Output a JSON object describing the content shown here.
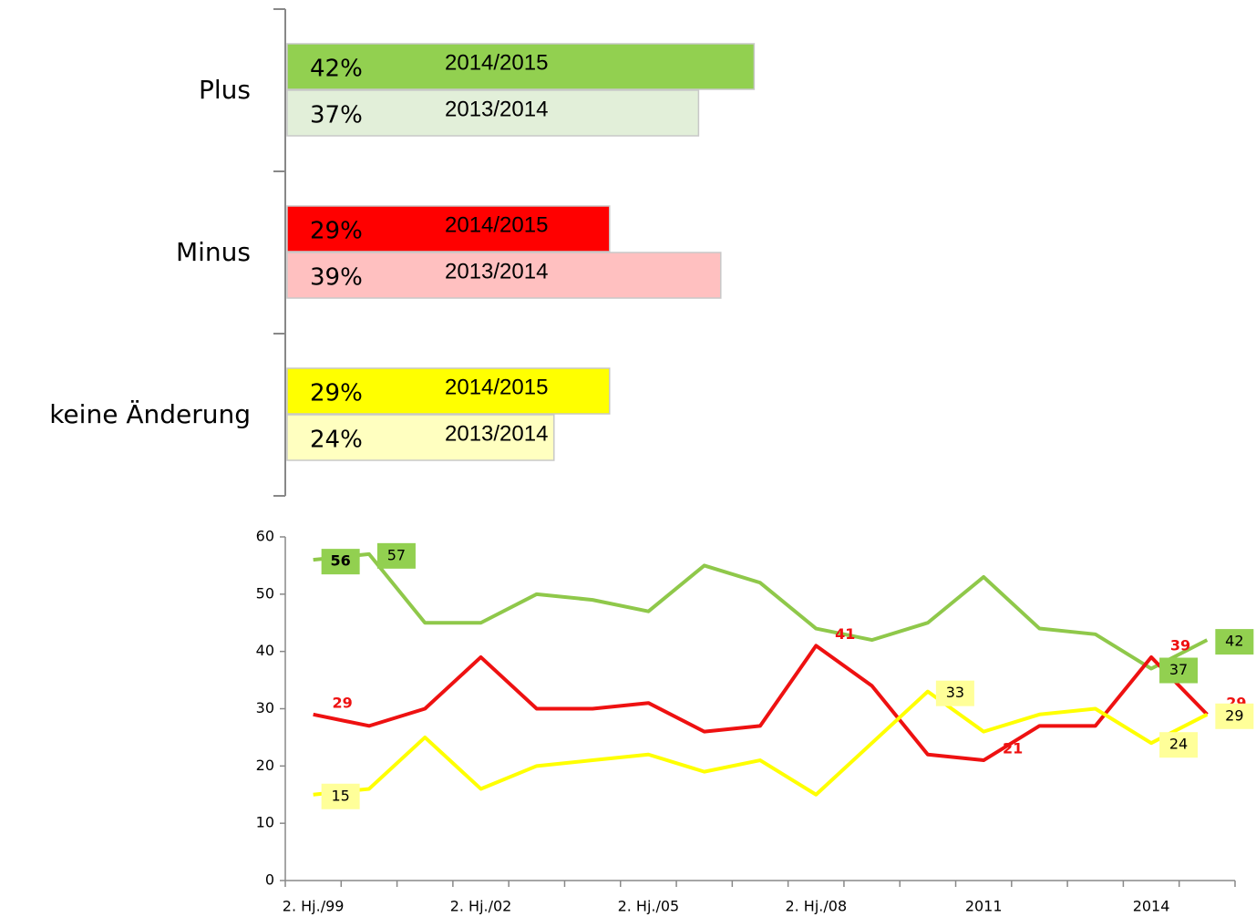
{
  "chart_data": [
    {
      "type": "hbar",
      "categories": [
        "Plus",
        "Minus",
        "keine Änderung"
      ],
      "xlim": [
        0,
        50
      ],
      "series": [
        {
          "name": "2014/2015",
          "colors": [
            "#92d050",
            "#ff0000",
            "#ffff00"
          ],
          "values": [
            42,
            29,
            29
          ],
          "value_labels": [
            "42%",
            "29%",
            "29%"
          ]
        },
        {
          "name": "2013/2014",
          "colors": [
            "#e2efd9",
            "#ffc0c0",
            "#ffffc0"
          ],
          "values": [
            37,
            39,
            24
          ],
          "value_labels": [
            "37%",
            "39%",
            "24%"
          ]
        }
      ]
    },
    {
      "type": "line",
      "categories": [
        "2. Hj./99",
        null,
        null,
        "2. Hj./02",
        null,
        null,
        "2. Hj./05",
        null,
        null,
        "2. Hj./08",
        null,
        null,
        "2011",
        null,
        null,
        "2014",
        null
      ],
      "ylim": [
        0,
        60
      ],
      "yticks": [
        0,
        10,
        20,
        30,
        40,
        50,
        60
      ],
      "series": [
        {
          "color": "#8fc84a",
          "label_fill": "#92d050",
          "labeled_points": [
            0,
            1,
            15,
            16
          ],
          "values": [
            56,
            57,
            45,
            45,
            50,
            49,
            47,
            55,
            52,
            44,
            42,
            45,
            53,
            44,
            43,
            37,
            42
          ]
        },
        {
          "color": "#ee1111",
          "label_fill": null,
          "labeled_points": [
            0,
            9,
            12,
            15,
            16
          ],
          "values": [
            29,
            27,
            30,
            39,
            30,
            30,
            31,
            26,
            27,
            41,
            34,
            22,
            21,
            27,
            27,
            39,
            29
          ]
        },
        {
          "color": "#ffff00",
          "label_fill": "#ffff99",
          "labeled_points": [
            0,
            11,
            15,
            16
          ],
          "values": [
            15,
            16,
            25,
            16,
            20,
            21,
            22,
            19,
            21,
            15,
            24,
            33,
            26,
            29,
            30,
            24,
            29
          ]
        }
      ]
    }
  ]
}
